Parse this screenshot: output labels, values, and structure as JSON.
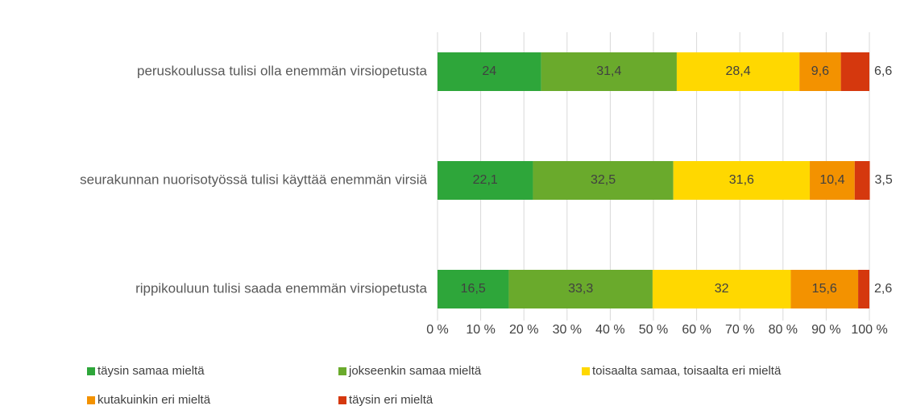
{
  "chart_data": {
    "type": "stacked_bar_horizontal",
    "categories": [
      "peruskoulussa tulisi olla enemmän virsiopetusta",
      "seurakunnan nuorisotyössä tulisi käyttää enemmän virsiä",
      "rippikouluun tulisi saada enemmän virsiopetusta"
    ],
    "series": [
      {
        "name": "täysin samaa mieltä",
        "color": "#2ea63a",
        "values": [
          24,
          22.1,
          16.5
        ],
        "value_labels": [
          "24",
          "22,1",
          "16,5"
        ]
      },
      {
        "name": "jokseenkin samaa mieltä",
        "color": "#6aaa2c",
        "values": [
          31.4,
          32.5,
          33.3
        ],
        "value_labels": [
          "31,4",
          "32,5",
          "33,3"
        ]
      },
      {
        "name": "toisaalta samaa, toisaalta eri mieltä",
        "color": "#ffd800",
        "values": [
          28.4,
          31.6,
          32
        ],
        "value_labels": [
          "28,4",
          "31,6",
          "32"
        ]
      },
      {
        "name": "kutakuinkin eri mieltä",
        "color": "#f39200",
        "values": [
          9.6,
          10.4,
          15.6
        ],
        "value_labels": [
          "9,6",
          "10,4",
          "15,6"
        ]
      },
      {
        "name": "täysin eri mieltä",
        "color": "#d5380e",
        "values": [
          6.6,
          3.5,
          2.6
        ],
        "value_labels": [
          "6,6",
          "3,5",
          "2,6"
        ]
      }
    ],
    "xlim": [
      0,
      100
    ],
    "xticks": [
      {
        "value": 0,
        "label": "0 %"
      },
      {
        "value": 10,
        "label": "10 %"
      },
      {
        "value": 20,
        "label": "20 %"
      },
      {
        "value": 30,
        "label": "30 %"
      },
      {
        "value": 40,
        "label": "40 %"
      },
      {
        "value": 50,
        "label": "50 %"
      },
      {
        "value": 60,
        "label": "60 %"
      },
      {
        "value": 70,
        "label": "70 %"
      },
      {
        "value": 80,
        "label": "80 %"
      },
      {
        "value": 90,
        "label": "90 %"
      },
      {
        "value": 100,
        "label": "100 %"
      }
    ],
    "grid": true,
    "legend": "bottom"
  }
}
